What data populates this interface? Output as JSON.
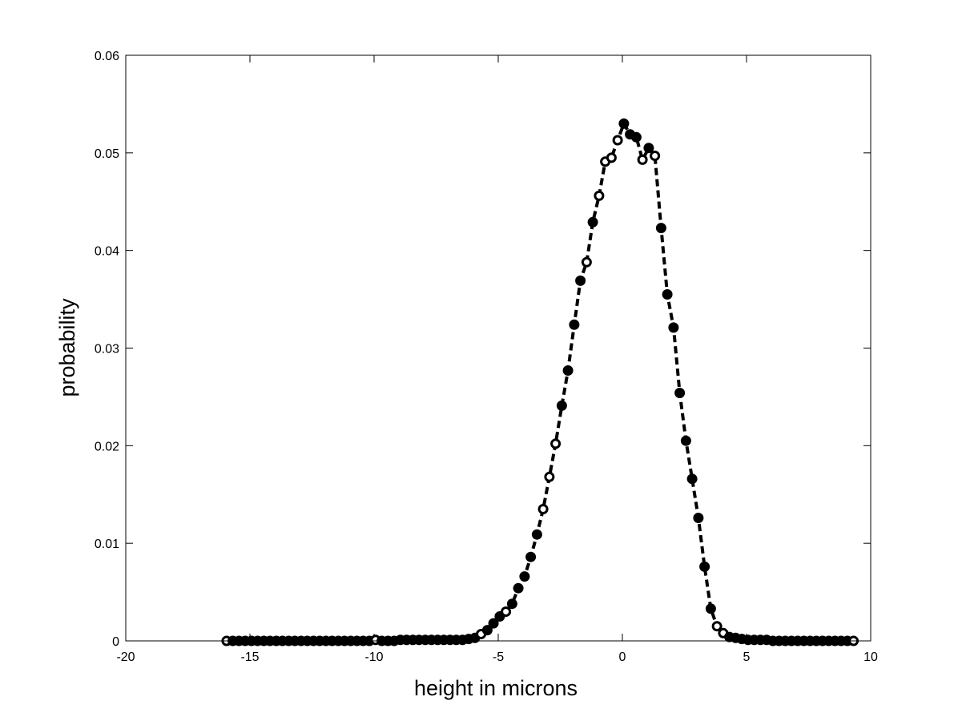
{
  "chart_data": {
    "type": "line",
    "title": "",
    "xlabel": "height in microns",
    "ylabel": "probability",
    "xlim": [
      -20,
      10
    ],
    "ylim": [
      0,
      0.06
    ],
    "xticks": [
      -20,
      -15,
      -10,
      -5,
      0,
      5,
      10
    ],
    "xtick_labels": [
      "-20",
      "-15",
      "-10",
      "-5",
      "0",
      "5",
      "10"
    ],
    "yticks": [
      0,
      0.01,
      0.02,
      0.03,
      0.04,
      0.05,
      0.06
    ],
    "ytick_labels": [
      "0",
      "0.01",
      "0.02",
      "0.03",
      "0.04",
      "0.05",
      "0.06"
    ],
    "grid": false,
    "legend": "none",
    "line_style": "dashed",
    "marker": "circle",
    "color": "#000000",
    "series": [
      {
        "x": [
          -15.94,
          -15.69,
          -15.44,
          -15.19,
          -14.94,
          -14.69,
          -14.44,
          -14.19,
          -13.94,
          -13.69,
          -13.44,
          -13.19,
          -12.94,
          -12.69,
          -12.44,
          -12.19,
          -11.94,
          -11.69,
          -11.44,
          -11.19,
          -10.94,
          -10.69,
          -10.44,
          -10.19,
          -9.94,
          -9.69,
          -9.44,
          -9.19,
          -8.94,
          -8.69,
          -8.44,
          -8.19,
          -7.94,
          -7.69,
          -7.44,
          -7.19,
          -6.94,
          -6.69,
          -6.44,
          -6.19,
          -5.94,
          -5.69,
          -5.44,
          -5.19,
          -4.94,
          -4.69,
          -4.44,
          -4.19,
          -3.94,
          -3.69,
          -3.44,
          -3.19,
          -2.94,
          -2.69,
          -2.44,
          -2.19,
          -1.94,
          -1.69,
          -1.44,
          -1.19,
          -0.94,
          -0.69,
          -0.44,
          -0.19,
          0.06,
          0.31,
          0.56,
          0.81,
          1.06,
          1.31,
          1.56,
          1.81,
          2.06,
          2.31,
          2.56,
          2.81,
          3.06,
          3.31,
          3.56,
          3.81,
          4.06,
          4.31,
          4.56,
          4.81,
          5.06,
          5.31,
          5.56,
          5.81,
          6.06,
          6.31,
          6.56,
          6.81,
          7.06,
          7.31,
          7.56,
          7.81,
          8.06,
          8.31,
          8.56,
          8.81,
          9.06,
          9.31
        ],
        "y": [
          0.0,
          0.0,
          0.0,
          0.0,
          0.0,
          0.0,
          0.0,
          0.0,
          0.0,
          0.0,
          0.0,
          0.0,
          0.0,
          0.0,
          0.0,
          0.0,
          0.0,
          0.0,
          0.0,
          0.0,
          0.0,
          0.0,
          0.0,
          0.0,
          0.0001,
          0.0,
          0.0,
          0.0,
          0.0001,
          0.0001,
          0.0001,
          0.0001,
          0.0001,
          0.0001,
          0.0001,
          0.0001,
          0.0001,
          0.0001,
          0.0001,
          0.0002,
          0.0003,
          0.0007,
          0.0011,
          0.0018,
          0.0025,
          0.003,
          0.0038,
          0.0054,
          0.0066,
          0.0086,
          0.0109,
          0.0135,
          0.0168,
          0.0202,
          0.0241,
          0.0277,
          0.0324,
          0.0369,
          0.0388,
          0.0429,
          0.0456,
          0.0491,
          0.0495,
          0.0513,
          0.053,
          0.0519,
          0.0516,
          0.0493,
          0.0505,
          0.0497,
          0.0423,
          0.0355,
          0.0321,
          0.0254,
          0.0205,
          0.0166,
          0.0126,
          0.0076,
          0.0033,
          0.0015,
          0.0008,
          0.0004,
          0.0003,
          0.0002,
          0.0001,
          0.0001,
          0.0001,
          0.0001,
          0.0,
          0.0,
          0.0,
          0.0,
          0.0,
          0.0,
          0.0,
          0.0,
          0.0,
          0.0,
          0.0,
          0.0,
          0.0,
          0.0
        ],
        "markers": [
          "open",
          "filled",
          "filled",
          "filled",
          "filled",
          "filled",
          "filled",
          "filled",
          "filled",
          "filled",
          "filled",
          "filled",
          "filled",
          "filled",
          "filled",
          "filled",
          "filled",
          "filled",
          "filled",
          "filled",
          "filled",
          "filled",
          "filled",
          "filled",
          "open",
          "filled",
          "filled",
          "filled",
          "filled",
          "filled",
          "filled",
          "filled",
          "filled",
          "filled",
          "filled",
          "filled",
          "filled",
          "filled",
          "filled",
          "filled",
          "filled",
          "open",
          "filled",
          "filled",
          "filled",
          "open",
          "filled",
          "filled",
          "filled",
          "filled",
          "filled",
          "open",
          "open",
          "open",
          "filled",
          "filled",
          "filled",
          "filled",
          "open",
          "filled",
          "open",
          "open",
          "open",
          "open",
          "filled",
          "filled",
          "filled",
          "open",
          "filled",
          "open",
          "filled",
          "filled",
          "filled",
          "filled",
          "filled",
          "filled",
          "filled",
          "filled",
          "filled",
          "open",
          "open",
          "filled",
          "filled",
          "filled",
          "filled",
          "filled",
          "filled",
          "filled",
          "filled",
          "filled",
          "filled",
          "filled",
          "filled",
          "filled",
          "filled",
          "filled",
          "filled",
          "filled",
          "filled",
          "filled",
          "filled",
          "open"
        ]
      }
    ]
  }
}
